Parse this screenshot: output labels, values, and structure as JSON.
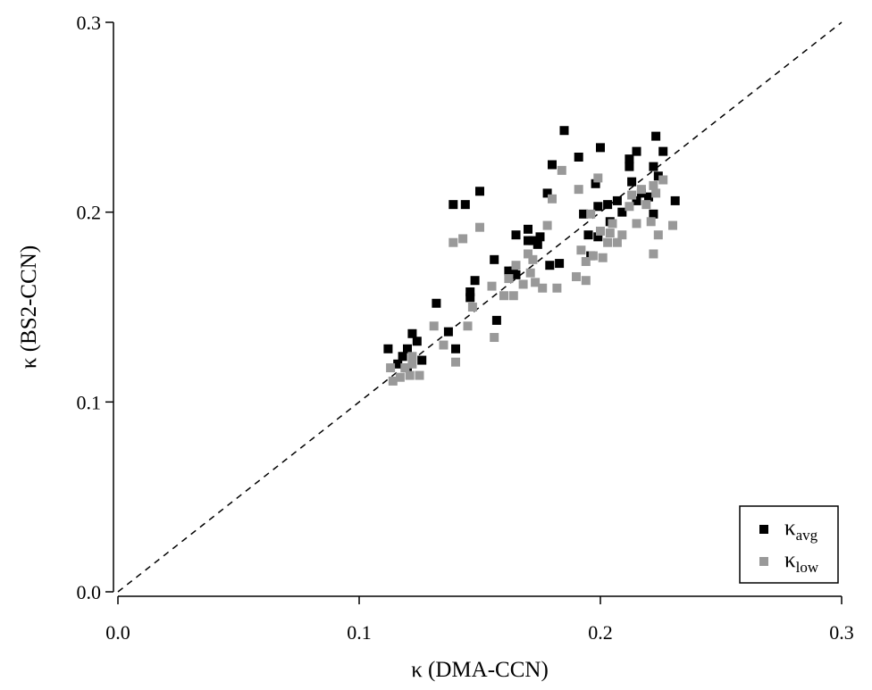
{
  "chart_data": {
    "type": "scatter",
    "xlabel": "κ (DMA-CCN)",
    "ylabel": "κ (BS2-CCN)",
    "xlim": [
      0,
      0.3
    ],
    "ylim": [
      0,
      0.3
    ],
    "xticks": [
      "0.0",
      "0.1",
      "0.2",
      "0.3"
    ],
    "yticks": [
      "0.0",
      "0.1",
      "0.2",
      "0.3"
    ],
    "grid": false,
    "reference_line": "1:1",
    "legend_position": "bottom-right",
    "series": [
      {
        "name": "κ",
        "name_sub": "avg",
        "color": "#000000",
        "points": [
          [
            0.112,
            0.128
          ],
          [
            0.116,
            0.12
          ],
          [
            0.118,
            0.124
          ],
          [
            0.12,
            0.128
          ],
          [
            0.122,
            0.136
          ],
          [
            0.124,
            0.132
          ],
          [
            0.126,
            0.122
          ],
          [
            0.12,
            0.118
          ],
          [
            0.132,
            0.152
          ],
          [
            0.137,
            0.137
          ],
          [
            0.14,
            0.128
          ],
          [
            0.139,
            0.204
          ],
          [
            0.144,
            0.204
          ],
          [
            0.146,
            0.158
          ],
          [
            0.146,
            0.155
          ],
          [
            0.148,
            0.164
          ],
          [
            0.15,
            0.211
          ],
          [
            0.156,
            0.175
          ],
          [
            0.157,
            0.143
          ],
          [
            0.162,
            0.169
          ],
          [
            0.164,
            0.169
          ],
          [
            0.165,
            0.167
          ],
          [
            0.165,
            0.188
          ],
          [
            0.17,
            0.191
          ],
          [
            0.17,
            0.185
          ],
          [
            0.172,
            0.185
          ],
          [
            0.174,
            0.183
          ],
          [
            0.175,
            0.187
          ],
          [
            0.178,
            0.21
          ],
          [
            0.18,
            0.225
          ],
          [
            0.179,
            0.172
          ],
          [
            0.183,
            0.173
          ],
          [
            0.185,
            0.243
          ],
          [
            0.191,
            0.229
          ],
          [
            0.193,
            0.199
          ],
          [
            0.195,
            0.188
          ],
          [
            0.196,
            0.177
          ],
          [
            0.198,
            0.215
          ],
          [
            0.199,
            0.203
          ],
          [
            0.199,
            0.187
          ],
          [
            0.2,
            0.234
          ],
          [
            0.203,
            0.204
          ],
          [
            0.204,
            0.195
          ],
          [
            0.207,
            0.206
          ],
          [
            0.209,
            0.2
          ],
          [
            0.212,
            0.224
          ],
          [
            0.213,
            0.216
          ],
          [
            0.212,
            0.228
          ],
          [
            0.215,
            0.232
          ],
          [
            0.215,
            0.206
          ],
          [
            0.217,
            0.21
          ],
          [
            0.22,
            0.208
          ],
          [
            0.222,
            0.224
          ],
          [
            0.222,
            0.199
          ],
          [
            0.223,
            0.24
          ],
          [
            0.224,
            0.219
          ],
          [
            0.226,
            0.232
          ],
          [
            0.231,
            0.206
          ]
        ]
      },
      {
        "name": "κ",
        "name_sub": "low",
        "color": "#999999",
        "points": [
          [
            0.113,
            0.118
          ],
          [
            0.114,
            0.111
          ],
          [
            0.117,
            0.113
          ],
          [
            0.119,
            0.118
          ],
          [
            0.121,
            0.114
          ],
          [
            0.122,
            0.12
          ],
          [
            0.122,
            0.124
          ],
          [
            0.125,
            0.114
          ],
          [
            0.131,
            0.14
          ],
          [
            0.135,
            0.13
          ],
          [
            0.139,
            0.184
          ],
          [
            0.14,
            0.121
          ],
          [
            0.143,
            0.186
          ],
          [
            0.145,
            0.14
          ],
          [
            0.147,
            0.15
          ],
          [
            0.15,
            0.192
          ],
          [
            0.155,
            0.161
          ],
          [
            0.156,
            0.134
          ],
          [
            0.16,
            0.156
          ],
          [
            0.162,
            0.165
          ],
          [
            0.164,
            0.156
          ],
          [
            0.165,
            0.172
          ],
          [
            0.168,
            0.162
          ],
          [
            0.17,
            0.178
          ],
          [
            0.171,
            0.168
          ],
          [
            0.172,
            0.175
          ],
          [
            0.173,
            0.163
          ],
          [
            0.176,
            0.16
          ],
          [
            0.178,
            0.193
          ],
          [
            0.18,
            0.207
          ],
          [
            0.182,
            0.16
          ],
          [
            0.184,
            0.222
          ],
          [
            0.19,
            0.166
          ],
          [
            0.191,
            0.212
          ],
          [
            0.192,
            0.18
          ],
          [
            0.194,
            0.174
          ],
          [
            0.194,
            0.164
          ],
          [
            0.196,
            0.199
          ],
          [
            0.197,
            0.177
          ],
          [
            0.199,
            0.218
          ],
          [
            0.2,
            0.19
          ],
          [
            0.201,
            0.176
          ],
          [
            0.203,
            0.184
          ],
          [
            0.204,
            0.189
          ],
          [
            0.205,
            0.194
          ],
          [
            0.207,
            0.184
          ],
          [
            0.209,
            0.188
          ],
          [
            0.212,
            0.203
          ],
          [
            0.213,
            0.209
          ],
          [
            0.215,
            0.194
          ],
          [
            0.217,
            0.212
          ],
          [
            0.219,
            0.204
          ],
          [
            0.221,
            0.195
          ],
          [
            0.222,
            0.214
          ],
          [
            0.222,
            0.178
          ],
          [
            0.223,
            0.21
          ],
          [
            0.224,
            0.188
          ],
          [
            0.226,
            0.217
          ],
          [
            0.23,
            0.193
          ]
        ]
      }
    ]
  }
}
